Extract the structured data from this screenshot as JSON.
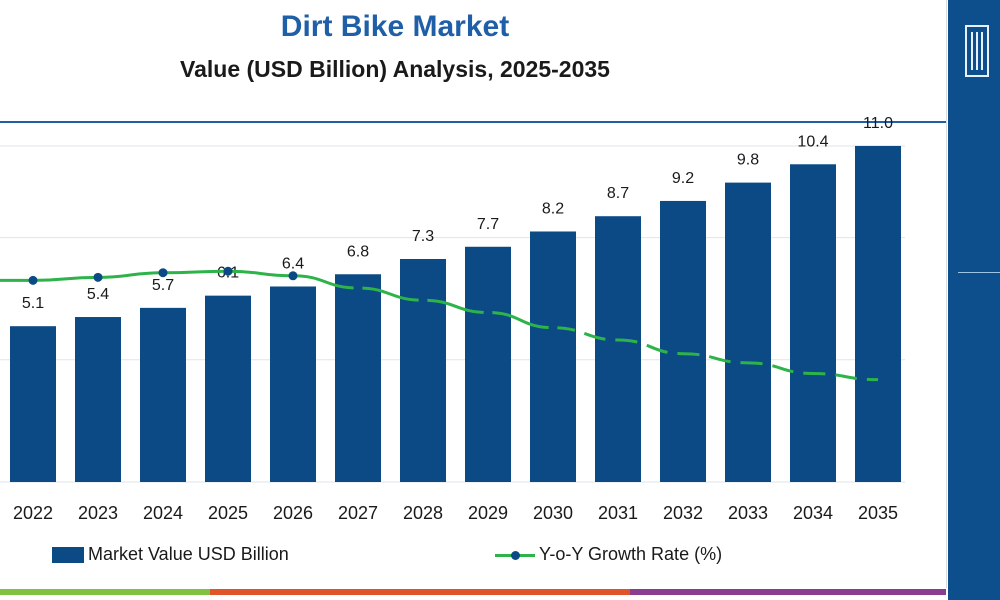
{
  "chart_data": {
    "type": "bar",
    "title": "Dirt Bike Market",
    "subtitle": "Value (USD Billion) Analysis, 2025-2035",
    "categories": [
      "2022",
      "2023",
      "2024",
      "2025",
      "2026",
      "2027",
      "2028",
      "2029",
      "2030",
      "2031",
      "2032",
      "2033",
      "2034",
      "2035"
    ],
    "series": [
      {
        "name": "Market Value USD Billion",
        "kind": "bar",
        "values": [
          5.1,
          5.4,
          5.7,
          6.1,
          6.4,
          6.8,
          7.3,
          7.7,
          8.2,
          8.7,
          9.2,
          9.8,
          10.4,
          11.0
        ],
        "labels": [
          "5.1",
          "5.4",
          "5.7",
          "6.1",
          "6.4",
          "6.8",
          "7.3",
          "7.7",
          "8.2",
          "8.7",
          "9.2",
          "9.8",
          "10.4",
          "11.0"
        ]
      },
      {
        "name": "Y-o-Y Growth Rate (%)",
        "kind": "line",
        "values": [
          6.6,
          6.7,
          6.85,
          6.9,
          6.75,
          6.35,
          5.95,
          5.55,
          5.05,
          4.65,
          4.2,
          3.9,
          3.55,
          3.35
        ],
        "markers_through_index": 8,
        "dashed_from_index": 9
      }
    ],
    "ylim": [
      0,
      12
    ],
    "y2lim": [
      0,
      12
    ],
    "grid": true,
    "legend": "bottom",
    "xlabel": "",
    "ylabel": ""
  },
  "colors": {
    "bar": "#0b4a85",
    "line": "#2db34a",
    "marker": "#0b4a85",
    "title": "#1f5fa8",
    "grid": "#dfe5ea",
    "footer": [
      "#7fc241",
      "#e0542a",
      "#8a3d8f"
    ]
  },
  "icons": {
    "side_logo": "building-icon"
  }
}
